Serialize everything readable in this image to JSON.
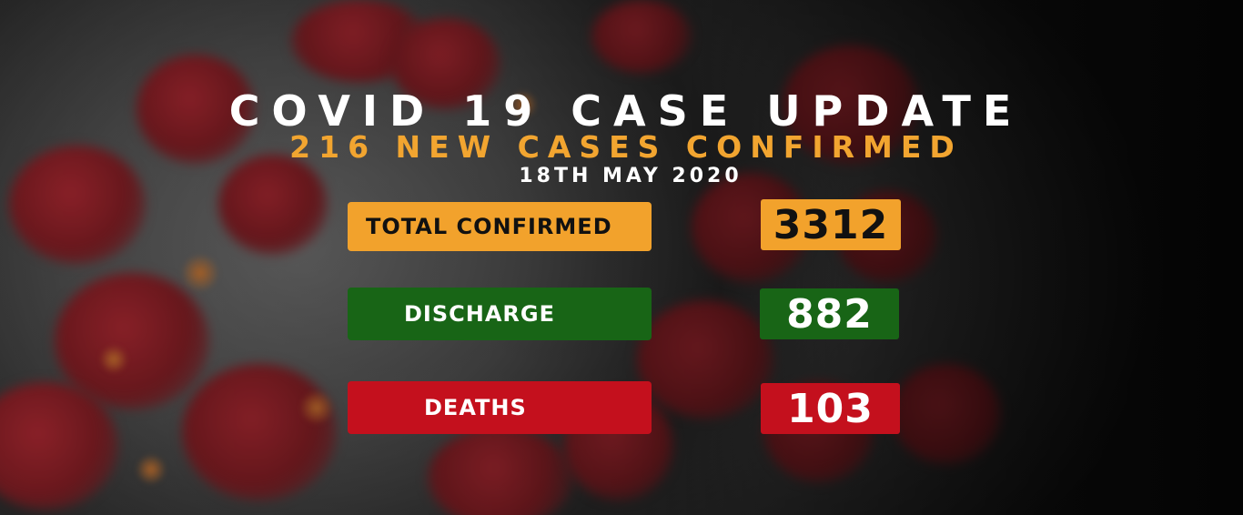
{
  "header": {
    "title": "COVID 19 CASE UPDATE",
    "subtitle": "216 NEW CASES CONFIRMED",
    "date": "18TH MAY 2020"
  },
  "stats": [
    {
      "label": "TOTAL CONFIRMED",
      "value": "3312",
      "color": "#f2a22c"
    },
    {
      "label": "DISCHARGE",
      "value": "882",
      "color": "#186516"
    },
    {
      "label": "DEATHS",
      "value": "103",
      "color": "#c4101d"
    }
  ],
  "colors": {
    "title": "#ffffff",
    "subtitle": "#f2a530",
    "background_virus": "#a3262f"
  }
}
